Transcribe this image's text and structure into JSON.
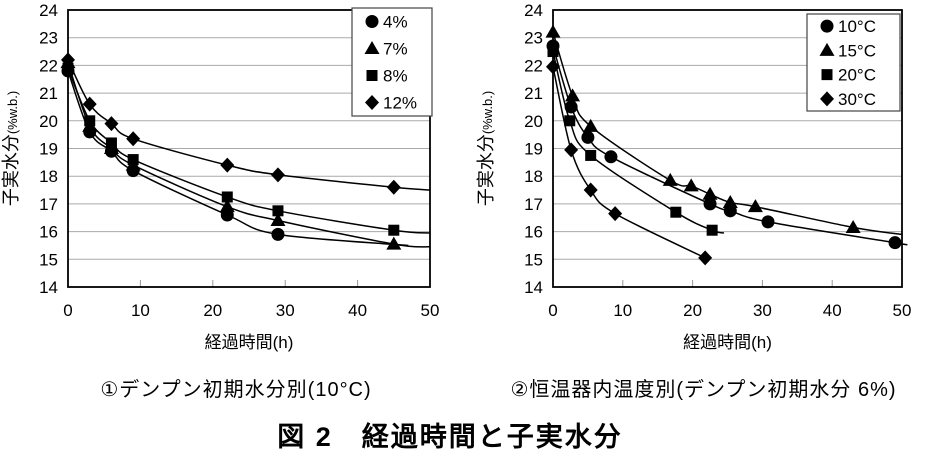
{
  "figure_title": "図 2　経過時間と子実水分",
  "colors": {
    "ink": "#000000",
    "grid": "#aaaaaa",
    "tick": "#999999",
    "legend_border": "#444444",
    "background": "#ffffff"
  },
  "chart_data": [
    {
      "type": "line",
      "caption": "①デンプン初期水分別(10°C)",
      "xlabel": "経過時間(h)",
      "ylabel": "子実水分",
      "ylabel_unit": "(%w.b.)",
      "xlim": [
        0,
        50
      ],
      "ylim": [
        14,
        24
      ],
      "xticks": [
        0,
        10,
        20,
        30,
        40,
        50
      ],
      "yticks": [
        14,
        15,
        16,
        17,
        18,
        19,
        20,
        21,
        22,
        23,
        24
      ],
      "grid": "horizontal",
      "legend_position": "top-right",
      "series": [
        {
          "name": "4%",
          "marker": "circle",
          "points": [
            [
              0,
              21.8
            ],
            [
              3,
              19.6
            ],
            [
              6,
              18.9
            ],
            [
              9,
              18.2
            ],
            [
              22,
              16.6
            ],
            [
              29,
              15.9
            ]
          ],
          "line_end": [
            47,
            15.5
          ]
        },
        {
          "name": "7%",
          "marker": "triangle",
          "points": [
            [
              0,
              22.1
            ],
            [
              3,
              19.8
            ],
            [
              6,
              19.0
            ],
            [
              9,
              18.4
            ],
            [
              22,
              16.9
            ],
            [
              29,
              16.4
            ],
            [
              45,
              15.55
            ]
          ],
          "line_end": [
            50,
            15.45
          ]
        },
        {
          "name": "8%",
          "marker": "square",
          "points": [
            [
              0,
              21.9
            ],
            [
              3,
              20.0
            ],
            [
              6,
              19.2
            ],
            [
              9,
              18.6
            ],
            [
              22,
              17.25
            ],
            [
              29,
              16.75
            ],
            [
              45,
              16.05
            ]
          ],
          "line_end": [
            50,
            15.95
          ]
        },
        {
          "name": "12%",
          "marker": "diamond",
          "points": [
            [
              0,
              22.2
            ],
            [
              3,
              20.6
            ],
            [
              6,
              19.9
            ],
            [
              9,
              19.35
            ],
            [
              22,
              18.4
            ],
            [
              29,
              18.05
            ],
            [
              45,
              17.6
            ]
          ],
          "line_end": [
            50,
            17.5
          ]
        }
      ]
    },
    {
      "type": "line",
      "caption": "②恒温器内温度別(デンプン初期水分 6%)",
      "xlabel": "経過時間(h)",
      "ylabel": "子実水分",
      "ylabel_unit": "(%w.b.)",
      "xlim": [
        0,
        50
      ],
      "ylim": [
        14,
        24
      ],
      "xticks": [
        0,
        10,
        20,
        30,
        40,
        50
      ],
      "yticks": [
        14,
        15,
        16,
        17,
        18,
        19,
        20,
        21,
        22,
        23,
        24
      ],
      "grid": "horizontal",
      "legend_position": "top-right",
      "series": [
        {
          "name": "10°C",
          "marker": "circle",
          "points": [
            [
              0,
              22.7
            ],
            [
              2.6,
              20.5
            ],
            [
              5,
              19.4
            ],
            [
              8.3,
              18.7
            ],
            [
              22.5,
              17.0
            ],
            [
              25.4,
              16.75
            ],
            [
              30.8,
              16.35
            ],
            [
              49,
              15.6
            ]
          ],
          "line_end": [
            50,
            15.55
          ]
        },
        {
          "name": "15°C",
          "marker": "triangle",
          "points": [
            [
              0,
              23.2
            ],
            [
              2.8,
              20.9
            ],
            [
              5.4,
              19.8
            ],
            [
              16.8,
              17.85
            ],
            [
              19.8,
              17.65
            ],
            [
              22.5,
              17.35
            ],
            [
              25.4,
              17.05
            ],
            [
              29,
              16.9
            ],
            [
              43,
              16.15
            ]
          ],
          "line_end": [
            50,
            15.9
          ]
        },
        {
          "name": "20°C",
          "marker": "square",
          "points": [
            [
              0,
              22.5
            ],
            [
              2.4,
              20.0
            ],
            [
              5.4,
              18.75
            ],
            [
              17.6,
              16.7
            ],
            [
              22.8,
              16.05
            ]
          ],
          "line_end": [
            24.5,
            15.95
          ]
        },
        {
          "name": "30°C",
          "marker": "diamond",
          "points": [
            [
              0,
              21.95
            ],
            [
              2.6,
              18.95
            ],
            [
              5.4,
              17.5
            ],
            [
              8.9,
              16.65
            ],
            [
              21.8,
              15.05
            ]
          ],
          "line_end": null
        }
      ]
    }
  ]
}
